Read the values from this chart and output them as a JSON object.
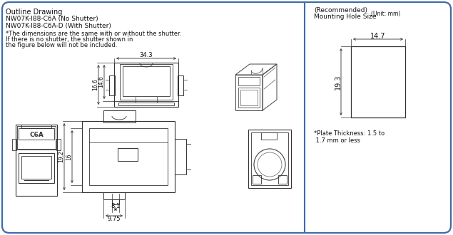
{
  "bg_color": "#ffffff",
  "border_color": "#3a6abf",
  "title_text": "Outline Drawing",
  "subtitle1": "NW07K-I88-C6A (No Shutter)",
  "subtitle2": "NW07K-I88-C6A-D (With Shutter)",
  "note1": "*The dimensions are the same with or without the shutter.",
  "note2": "If there is no shutter, the shutter shown in",
  "note3": "the figure below will not be included.",
  "right_title1": "(Recommended)",
  "right_title2": "Mounting Hole Size",
  "right_unit": "(Unit: mm)",
  "dim_343": "34.3",
  "dim_166": "16.6",
  "dim_146": "14.6",
  "dim_192": "19.2",
  "dim_16": "16",
  "dim_81": "8.1",
  "dim_975": "9.75",
  "dim_147": "14.7",
  "dim_193": "19.3",
  "plate_note": "*Plate Thickness: 1.5 to\n 1.7 mm or less",
  "text_color": "#111111"
}
